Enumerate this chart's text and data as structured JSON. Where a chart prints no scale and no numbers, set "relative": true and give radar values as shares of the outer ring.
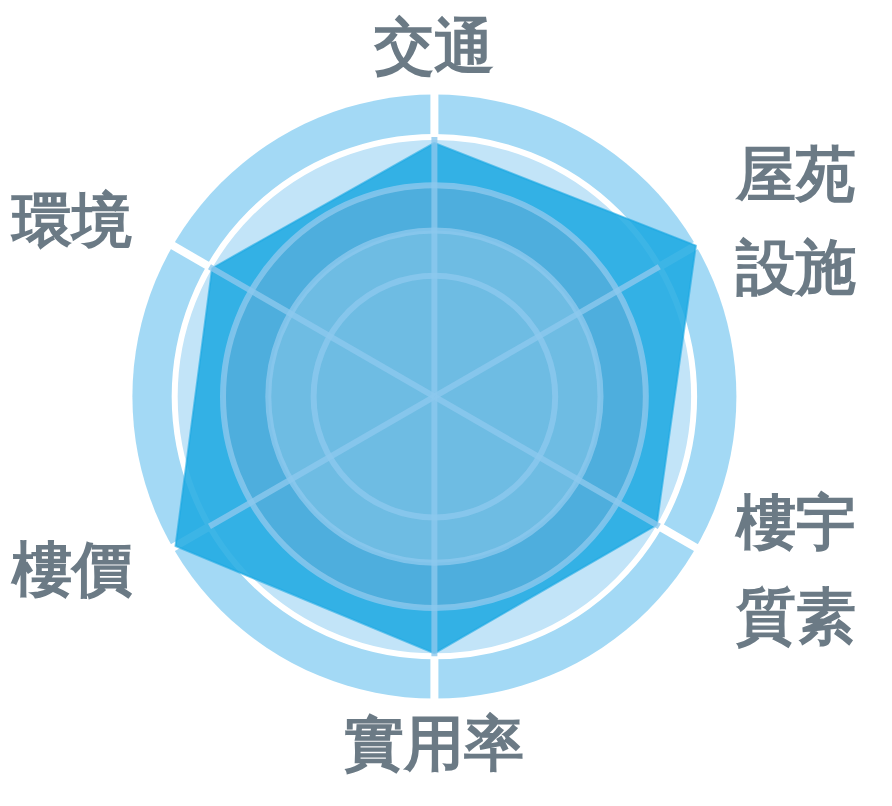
{
  "chart_data": {
    "type": "radar",
    "categories": [
      "交通",
      "屋苑設施",
      "樓宇質素",
      "實用率",
      "樓價",
      "環境"
    ],
    "relative": true,
    "series": [
      {
        "color": "#1aa8e2",
        "values": [
          0.84,
          1.0,
          0.85,
          0.85,
          0.99,
          0.85
        ]
      }
    ],
    "grid": true
  }
}
